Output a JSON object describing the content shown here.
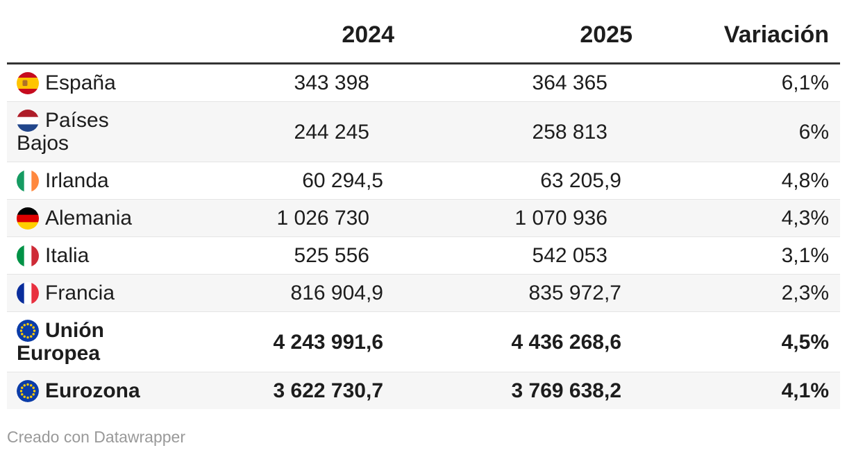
{
  "table": {
    "columns": [
      {
        "key": "country",
        "label": ""
      },
      {
        "key": "y2024",
        "label": "2024"
      },
      {
        "key": "y2025",
        "label": "2025"
      },
      {
        "key": "variation",
        "label": "Variación"
      }
    ],
    "rows": [
      {
        "country": "España",
        "flag": "es",
        "y2024": "343 398",
        "y2025": "364 365",
        "variation": "6,1%",
        "bold": false
      },
      {
        "country": "Países Bajos",
        "flag": "nl",
        "y2024": "244 245",
        "y2025": "258 813",
        "variation": "6%",
        "bold": false
      },
      {
        "country": "Irlanda",
        "flag": "ie",
        "y2024": "60 294,5",
        "y2025": "63 205,9",
        "variation": "4,8%",
        "bold": false
      },
      {
        "country": "Alemania",
        "flag": "de",
        "y2024": "1 026 730",
        "y2025": "1 070 936",
        "variation": "4,3%",
        "bold": false
      },
      {
        "country": "Italia",
        "flag": "it",
        "y2024": "525 556",
        "y2025": "542 053",
        "variation": "3,1%",
        "bold": false
      },
      {
        "country": "Francia",
        "flag": "fr",
        "y2024": "816 904,9",
        "y2025": "835 972,7",
        "variation": "2,3%",
        "bold": false
      },
      {
        "country": "Unión Europea",
        "flag": "eu",
        "y2024": "4 243 991,6",
        "y2025": "4 436 268,6",
        "variation": "4,5%",
        "bold": true
      },
      {
        "country": "Eurozona",
        "flag": "eu",
        "y2024": "3 622 730,7",
        "y2025": "3 769 638,2",
        "variation": "4,1%",
        "bold": true
      }
    ]
  },
  "flags": {
    "es": {
      "icon": "spain-flag-icon",
      "orientation": "horizontal",
      "stripes": [
        {
          "color": "#c60b1e",
          "size": 0.25
        },
        {
          "color": "#ffc400",
          "size": 0.5
        },
        {
          "color": "#c60b1e",
          "size": 0.25
        }
      ],
      "emblem": "#a0612f"
    },
    "nl": {
      "icon": "netherlands-flag-icon",
      "orientation": "horizontal",
      "stripes": [
        {
          "color": "#ae1c28",
          "size": 0.334
        },
        {
          "color": "#ffffff",
          "size": 0.333
        },
        {
          "color": "#21468b",
          "size": 0.333
        }
      ]
    },
    "ie": {
      "icon": "ireland-flag-icon",
      "orientation": "vertical",
      "stripes": [
        {
          "color": "#169b62",
          "size": 0.334
        },
        {
          "color": "#ffffff",
          "size": 0.333
        },
        {
          "color": "#ff883e",
          "size": 0.333
        }
      ]
    },
    "de": {
      "icon": "germany-flag-icon",
      "orientation": "horizontal",
      "stripes": [
        {
          "color": "#000000",
          "size": 0.334
        },
        {
          "color": "#dd0000",
          "size": 0.333
        },
        {
          "color": "#ffce00",
          "size": 0.333
        }
      ]
    },
    "it": {
      "icon": "italy-flag-icon",
      "orientation": "vertical",
      "stripes": [
        {
          "color": "#009246",
          "size": 0.334
        },
        {
          "color": "#ffffff",
          "size": 0.333
        },
        {
          "color": "#ce2b37",
          "size": 0.333
        }
      ]
    },
    "fr": {
      "icon": "france-flag-icon",
      "orientation": "vertical",
      "stripes": [
        {
          "color": "#0a2d9c",
          "size": 0.334
        },
        {
          "color": "#ffffff",
          "size": 0.333
        },
        {
          "color": "#e8303f",
          "size": 0.333
        }
      ]
    },
    "eu": {
      "icon": "eu-flag-icon",
      "background": "#0b3ca8",
      "stars": "#ffcc00",
      "star_count": 12
    }
  },
  "footer": {
    "attribution": "Creado con Datawrapper"
  },
  "colors": {
    "text": "#1d1d1d",
    "muted": "#999999",
    "header_border": "#333333",
    "divider": "#e4e4e4",
    "row_alt_bg": "#f6f6f6",
    "bg": "#ffffff"
  },
  "chart_data": {
    "type": "table",
    "columns": [
      "",
      "2024",
      "2025",
      "Variación"
    ],
    "rows": [
      [
        "España",
        "343 398",
        "364 365",
        "6,1%"
      ],
      [
        "Países Bajos",
        "244 245",
        "258 813",
        "6%"
      ],
      [
        "Irlanda",
        "60 294,5",
        "63 205,9",
        "4,8%"
      ],
      [
        "Alemania",
        "1 026 730",
        "1 070 936",
        "4,3%"
      ],
      [
        "Italia",
        "525 556",
        "542 053",
        "3,1%"
      ],
      [
        "Francia",
        "816 904,9",
        "835 972,7",
        "2,3%"
      ],
      [
        "Unión Europea",
        "4 243 991,6",
        "4 436 268,6",
        "4,5%"
      ],
      [
        "Eurozona",
        "3 622 730,7",
        "3 769 638,2",
        "4,1%"
      ]
    ],
    "notes": "Bold rows: Unión Europea, Eurozona. Numbers use space thousands separator and comma decimals; zebra striping on alternate rows."
  }
}
